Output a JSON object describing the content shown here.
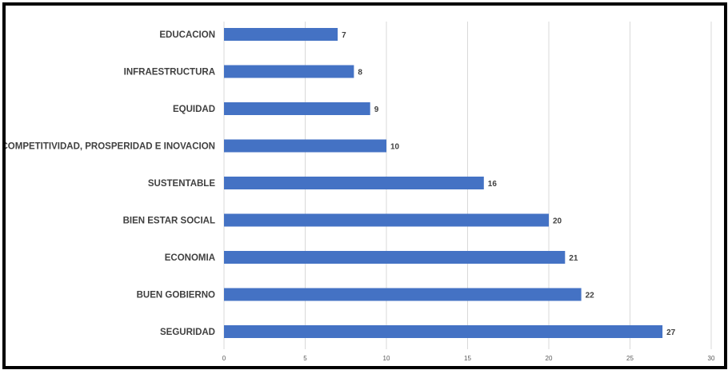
{
  "chart_data": {
    "type": "bar",
    "orientation": "horizontal",
    "categories": [
      "EDUCACION",
      "INFRAESTRUCTURA",
      "EQUIDAD",
      "COMPETITIVIDAD, PROSPERIDAD E INOVACION",
      "SUSTENTABLE",
      "BIEN ESTAR SOCIAL",
      "ECONOMIA",
      "BUEN GOBIERNO",
      "SEGURIDAD"
    ],
    "values": [
      7,
      8,
      9,
      10,
      16,
      20,
      21,
      22,
      27
    ],
    "title": "",
    "xlabel": "",
    "ylabel": "",
    "xlim": [
      0,
      30
    ],
    "xticks": [
      0,
      5,
      10,
      15,
      20,
      25,
      30
    ],
    "grid": true,
    "data_labels": true,
    "bar_color": "#4472c4"
  }
}
